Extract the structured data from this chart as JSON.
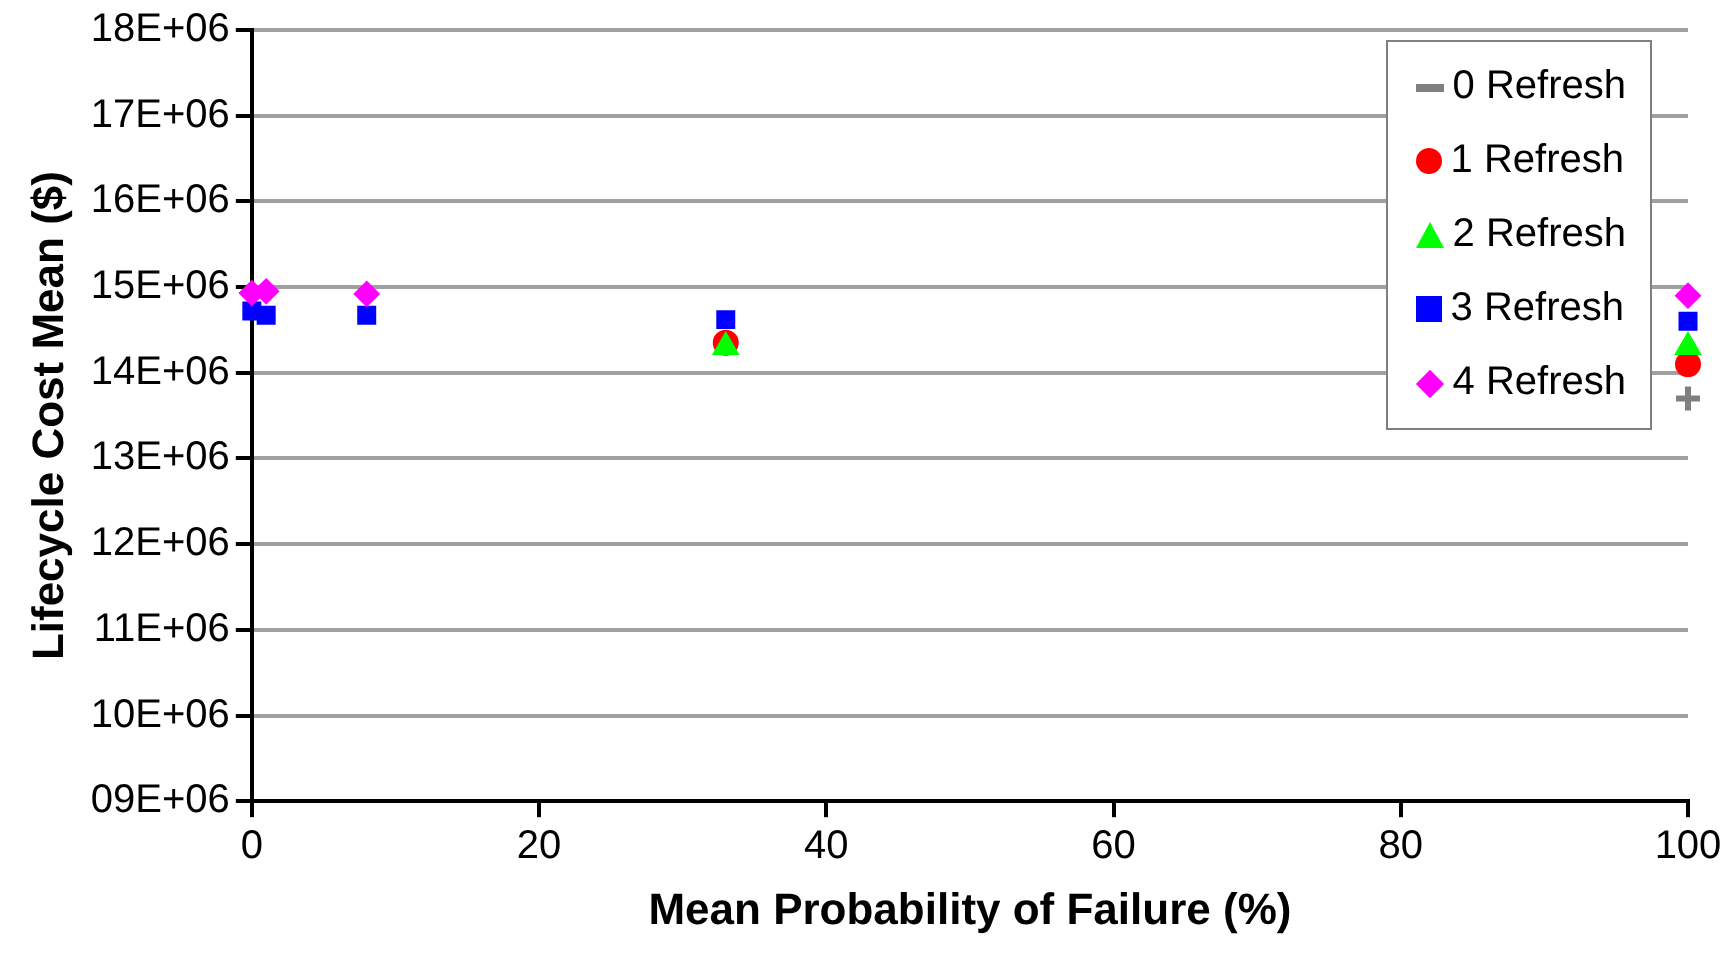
{
  "chart_data": {
    "type": "scatter",
    "xlabel": "Mean Probability of Failure (%)",
    "ylabel": "Lifecycle Cost Mean ($)",
    "xlim": [
      0,
      100
    ],
    "xticks": [
      0,
      20,
      40,
      60,
      80,
      100
    ],
    "ylim": [
      9000000,
      18000000
    ],
    "yticks": [
      {
        "value": 9000000,
        "label": "09E+06"
      },
      {
        "value": 10000000,
        "label": "10E+06"
      },
      {
        "value": 11000000,
        "label": "11E+06"
      },
      {
        "value": 12000000,
        "label": "12E+06"
      },
      {
        "value": 13000000,
        "label": "13E+06"
      },
      {
        "value": 14000000,
        "label": "14E+06"
      },
      {
        "value": 15000000,
        "label": "15E+06"
      },
      {
        "value": 16000000,
        "label": "16E+06"
      },
      {
        "value": 17000000,
        "label": "17E+06"
      },
      {
        "value": 18000000,
        "label": "18E+06"
      }
    ],
    "grid": "y",
    "legend": "top right",
    "series": [
      {
        "name": "0 Refresh",
        "color": "#808080",
        "marker": "cross",
        "x": [
          100
        ],
        "values": [
          13700000
        ]
      },
      {
        "name": "1 Refresh",
        "color": "#ff0000",
        "marker": "circle",
        "x": [
          33,
          100
        ],
        "values": [
          14350000,
          14100000
        ]
      },
      {
        "name": "2 Refresh",
        "color": "#00ff00",
        "marker": "triangle",
        "x": [
          33,
          100
        ],
        "values": [
          14300000,
          14300000
        ]
      },
      {
        "name": "3 Refresh",
        "color": "#0000ff",
        "marker": "square",
        "x": [
          0,
          1,
          8,
          33,
          100
        ],
        "values": [
          14720000,
          14670000,
          14670000,
          14620000,
          14600000
        ]
      },
      {
        "name": "4 Refresh",
        "color": "#ff00ff",
        "marker": "diamond",
        "x": [
          0,
          1,
          8,
          100
        ],
        "values": [
          14930000,
          14950000,
          14920000,
          14900000
        ]
      }
    ]
  }
}
